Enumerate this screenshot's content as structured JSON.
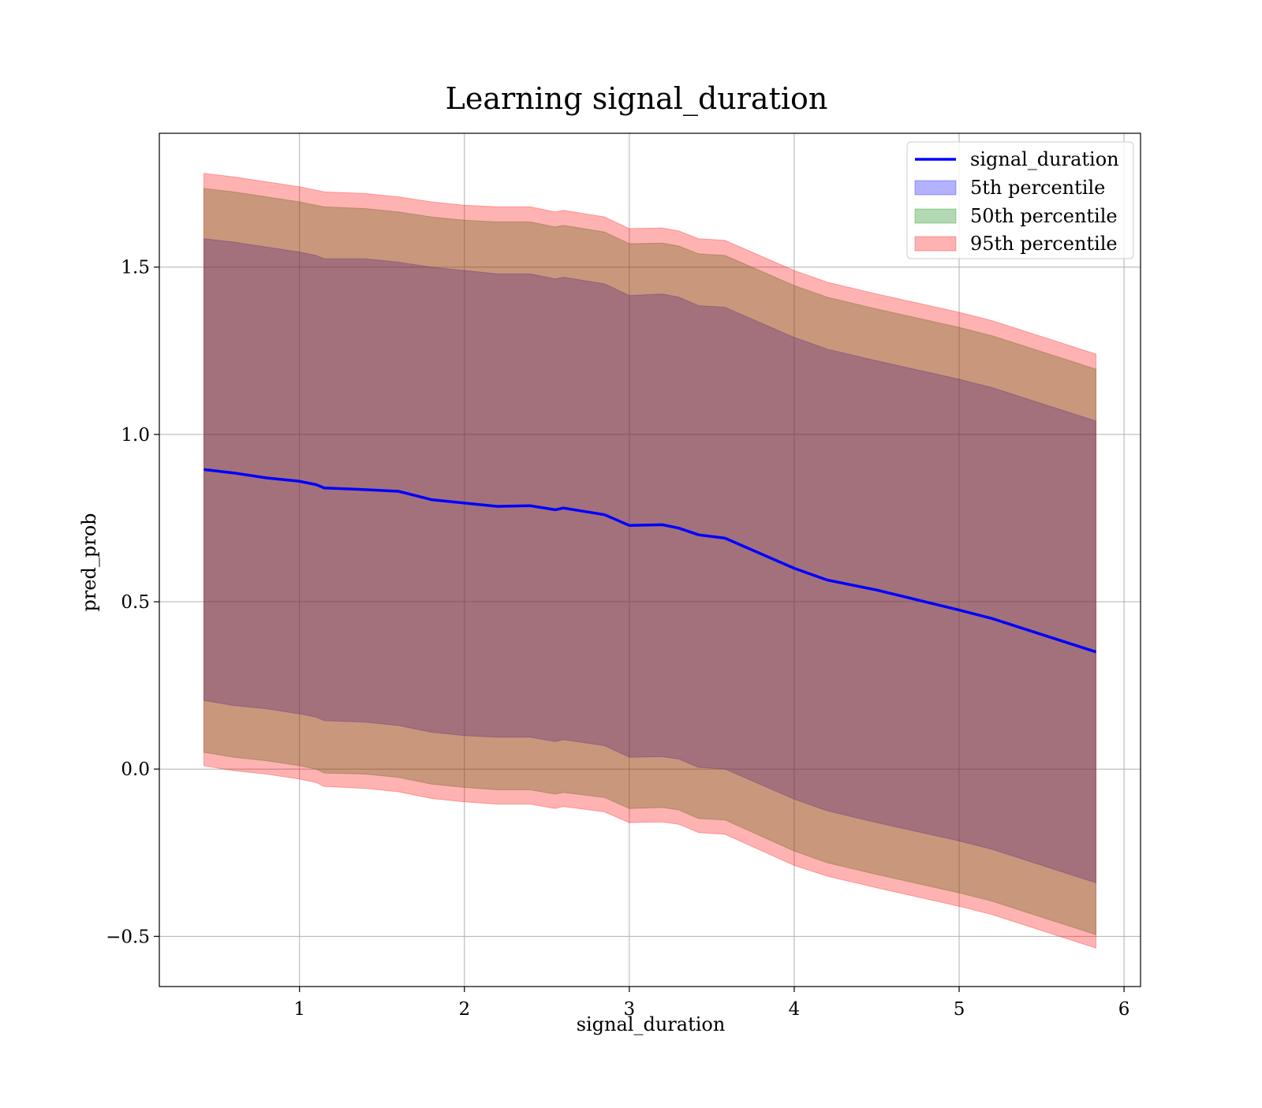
{
  "chart_data": {
    "type": "area",
    "title": "Learning signal_duration",
    "xlabel": "signal_duration",
    "ylabel": "pred_prob",
    "xlim": [
      0.15,
      6.1
    ],
    "ylim": [
      -0.65,
      1.9
    ],
    "x_ticks": [
      1,
      2,
      3,
      4,
      5,
      6
    ],
    "x_tick_labels": [
      "1",
      "2",
      "3",
      "4",
      "5",
      "6"
    ],
    "y_ticks": [
      -0.5,
      0.0,
      0.5,
      1.0,
      1.5
    ],
    "y_tick_labels": [
      "−0.5",
      "0.0",
      "0.5",
      "1.0",
      "1.5"
    ],
    "grid": true,
    "legend_position": "top-right",
    "x": [
      0.42,
      0.6,
      0.8,
      1.0,
      1.1,
      1.15,
      1.4,
      1.6,
      1.8,
      2.0,
      2.2,
      2.4,
      2.55,
      2.6,
      2.85,
      3.0,
      3.2,
      3.3,
      3.42,
      3.58,
      4.0,
      4.2,
      4.5,
      5.0,
      5.2,
      5.83
    ],
    "line": {
      "name": "signal_duration",
      "color": "#0000ff",
      "values": [
        0.895,
        0.885,
        0.87,
        0.86,
        0.85,
        0.84,
        0.835,
        0.83,
        0.805,
        0.795,
        0.785,
        0.787,
        0.775,
        0.78,
        0.76,
        0.728,
        0.73,
        0.72,
        0.7,
        0.69,
        0.6,
        0.565,
        0.535,
        0.475,
        0.45,
        0.35
      ]
    },
    "bands": [
      {
        "name": "5th percentile",
        "color": "#0000ff",
        "opacity": 0.3,
        "lower": [
          0.205,
          0.19,
          0.18,
          0.165,
          0.155,
          0.145,
          0.14,
          0.13,
          0.11,
          0.1,
          0.095,
          0.095,
          0.082,
          0.088,
          0.07,
          0.035,
          0.037,
          0.03,
          0.005,
          0.0,
          -0.09,
          -0.125,
          -0.16,
          -0.215,
          -0.24,
          -0.34
        ],
        "upper": [
          1.585,
          1.575,
          1.56,
          1.545,
          1.535,
          1.525,
          1.525,
          1.515,
          1.5,
          1.49,
          1.48,
          1.48,
          1.465,
          1.47,
          1.45,
          1.415,
          1.42,
          1.41,
          1.385,
          1.38,
          1.29,
          1.255,
          1.22,
          1.165,
          1.14,
          1.04
        ]
      },
      {
        "name": "50th percentile",
        "color": "#008000",
        "opacity": 0.3,
        "lower": [
          0.05,
          0.035,
          0.025,
          0.01,
          0.0,
          -0.012,
          -0.015,
          -0.025,
          -0.045,
          -0.055,
          -0.062,
          -0.062,
          -0.075,
          -0.07,
          -0.085,
          -0.118,
          -0.115,
          -0.122,
          -0.148,
          -0.152,
          -0.245,
          -0.28,
          -0.315,
          -0.37,
          -0.395,
          -0.495
        ],
        "upper": [
          1.735,
          1.725,
          1.71,
          1.695,
          1.685,
          1.68,
          1.675,
          1.665,
          1.65,
          1.64,
          1.635,
          1.635,
          1.62,
          1.625,
          1.605,
          1.57,
          1.572,
          1.563,
          1.54,
          1.535,
          1.445,
          1.41,
          1.375,
          1.32,
          1.295,
          1.195
        ]
      },
      {
        "name": "95th percentile",
        "color": "#ff0000",
        "opacity": 0.3,
        "lower": [
          0.01,
          -0.005,
          -0.015,
          -0.03,
          -0.04,
          -0.052,
          -0.058,
          -0.068,
          -0.088,
          -0.098,
          -0.105,
          -0.105,
          -0.118,
          -0.112,
          -0.128,
          -0.16,
          -0.158,
          -0.165,
          -0.19,
          -0.195,
          -0.288,
          -0.32,
          -0.355,
          -0.41,
          -0.435,
          -0.535
        ],
        "upper": [
          1.78,
          1.77,
          1.755,
          1.74,
          1.73,
          1.725,
          1.72,
          1.71,
          1.695,
          1.685,
          1.68,
          1.68,
          1.665,
          1.67,
          1.65,
          1.615,
          1.617,
          1.608,
          1.585,
          1.58,
          1.49,
          1.455,
          1.42,
          1.365,
          1.34,
          1.24
        ]
      }
    ],
    "legend": [
      "signal_duration",
      "5th percentile",
      "50th percentile",
      "95th percentile"
    ]
  }
}
